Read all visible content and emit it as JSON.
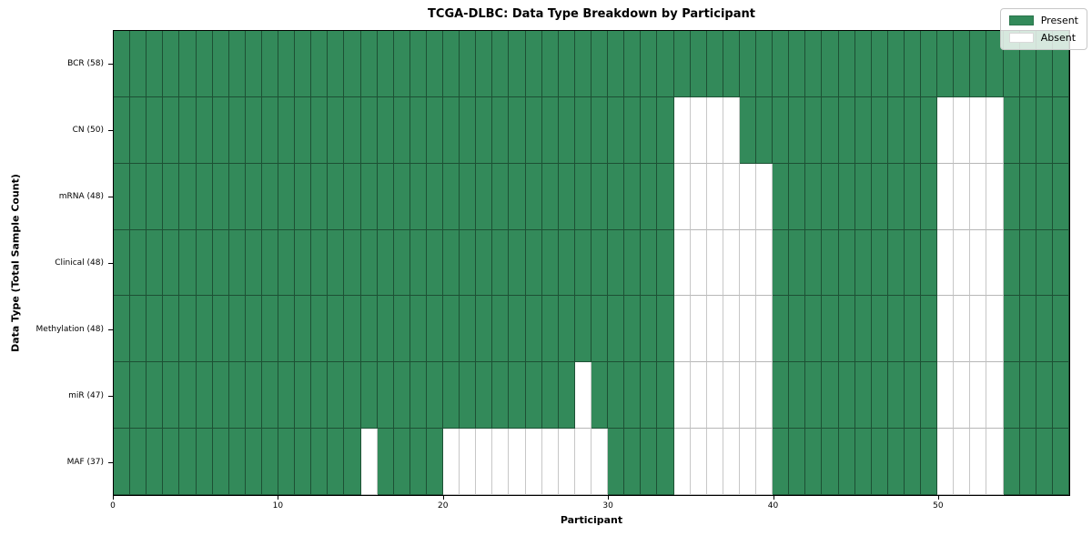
{
  "chart_data": {
    "type": "heatmap",
    "title": "TCGA-DLBC: Data Type Breakdown by Participant",
    "xlabel": "Participant",
    "ylabel": "Data Type (Total Sample Count)",
    "x_range": [
      0,
      58
    ],
    "n_participants": 58,
    "x_ticks": [
      0,
      10,
      20,
      30,
      40,
      50
    ],
    "grid": "cell-borders",
    "colors": {
      "present": "#338a5a",
      "absent": "#ffffff"
    },
    "legend": {
      "position": "upper-right",
      "present_label": "Present",
      "absent_label": "Absent"
    },
    "rows": [
      {
        "label": "BCR (58)",
        "data_type": "BCR",
        "total_sample_count": 58,
        "absent_participants": []
      },
      {
        "label": "CN (50)",
        "data_type": "CN",
        "total_sample_count": 50,
        "absent_participants": [
          34,
          35,
          36,
          37,
          50,
          51,
          52,
          53
        ]
      },
      {
        "label": "mRNA (48)",
        "data_type": "mRNA",
        "total_sample_count": 48,
        "absent_participants": [
          34,
          35,
          36,
          37,
          38,
          39,
          50,
          51,
          52,
          53
        ]
      },
      {
        "label": "Clinical (48)",
        "data_type": "Clinical",
        "total_sample_count": 48,
        "absent_participants": [
          34,
          35,
          36,
          37,
          38,
          39,
          50,
          51,
          52,
          53
        ]
      },
      {
        "label": "Methylation (48)",
        "data_type": "Methylation",
        "total_sample_count": 48,
        "absent_participants": [
          34,
          35,
          36,
          37,
          38,
          39,
          50,
          51,
          52,
          53
        ]
      },
      {
        "label": "miR (47)",
        "data_type": "miR",
        "total_sample_count": 47,
        "absent_participants": [
          28,
          34,
          35,
          36,
          37,
          38,
          39,
          50,
          51,
          52,
          53
        ]
      },
      {
        "label": "MAF (37)",
        "data_type": "MAF",
        "total_sample_count": 37,
        "absent_participants": [
          15,
          20,
          21,
          22,
          23,
          24,
          25,
          26,
          27,
          28,
          29,
          34,
          35,
          36,
          37,
          38,
          39,
          50,
          51,
          52,
          53
        ]
      }
    ]
  }
}
